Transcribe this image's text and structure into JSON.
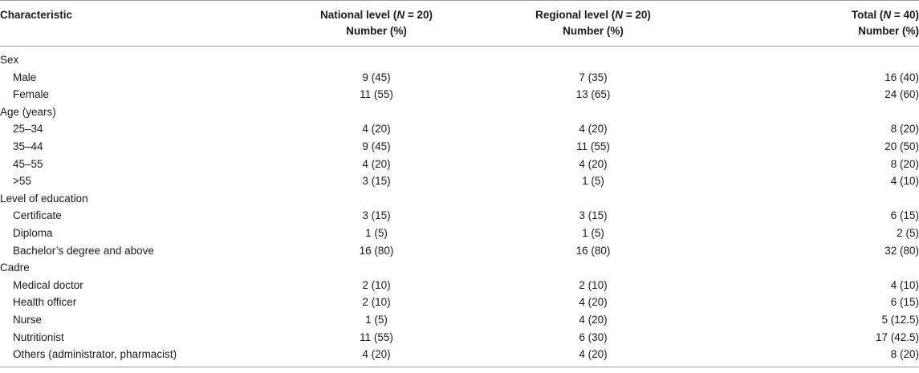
{
  "table": {
    "headers": [
      {
        "pre": "Characteristic",
        "n": "",
        "post": "",
        "line2": ""
      },
      {
        "pre": "National level (",
        "n": "N",
        "post": " = 20)",
        "line2": "Number (%)"
      },
      {
        "pre": "Regional level (",
        "n": "N",
        "post": " = 20)",
        "line2": "Number (%)"
      },
      {
        "pre": "Total (",
        "n": "N",
        "post": " = 40)",
        "line2": "Number (%)"
      }
    ],
    "rows": [
      {
        "label": "Sex",
        "national": "",
        "regional": "",
        "total": ""
      },
      {
        "label": "Male",
        "national": "9 (45)",
        "regional": "7 (35)",
        "total": "16 (40)"
      },
      {
        "label": "Female",
        "national": "11 (55)",
        "regional": "13 (65)",
        "total": "24 (60)"
      },
      {
        "label": "Age (years)",
        "national": "",
        "regional": "",
        "total": ""
      },
      {
        "label": "25–34",
        "national": "4 (20)",
        "regional": "4 (20)",
        "total": "8 (20)"
      },
      {
        "label": "35–44",
        "national": "9 (45)",
        "regional": "11 (55)",
        "total": "20 (50)"
      },
      {
        "label": "45–55",
        "national": "4 (20)",
        "regional": "4 (20)",
        "total": "8 (20)"
      },
      {
        "label": ">55",
        "national": "3 (15)",
        "regional": "1 (5)",
        "total": "4 (10)"
      },
      {
        "label": "Level of education",
        "national": "",
        "regional": "",
        "total": ""
      },
      {
        "label": "Certificate",
        "national": "3 (15)",
        "regional": "3 (15)",
        "total": "6 (15)"
      },
      {
        "label": "Diploma",
        "national": "1 (5)",
        "regional": "1 (5)",
        "total": "2 (5)"
      },
      {
        "label": "Bachelor’s degree and above",
        "national": "16 (80)",
        "regional": "16 (80)",
        "total": "32 (80)"
      },
      {
        "label": "Cadre",
        "national": "",
        "regional": "",
        "total": ""
      },
      {
        "label": "Medical doctor",
        "national": "2 (10)",
        "regional": "2 (10)",
        "total": "4 (10)"
      },
      {
        "label": "Health officer",
        "national": "2 (10)",
        "regional": "4 (20)",
        "total": "6 (15)"
      },
      {
        "label": "Nurse",
        "national": "1 (5)",
        "regional": "4 (20)",
        "total": "5 (12.5)"
      },
      {
        "label": "Nutritionist",
        "national": "11 (55)",
        "regional": "6 (30)",
        "total": "17 (42.5)"
      },
      {
        "label": "Others (administrator, pharmacist)",
        "national": "4 (20)",
        "regional": "4 (20)",
        "total": "8 (20)"
      }
    ]
  }
}
